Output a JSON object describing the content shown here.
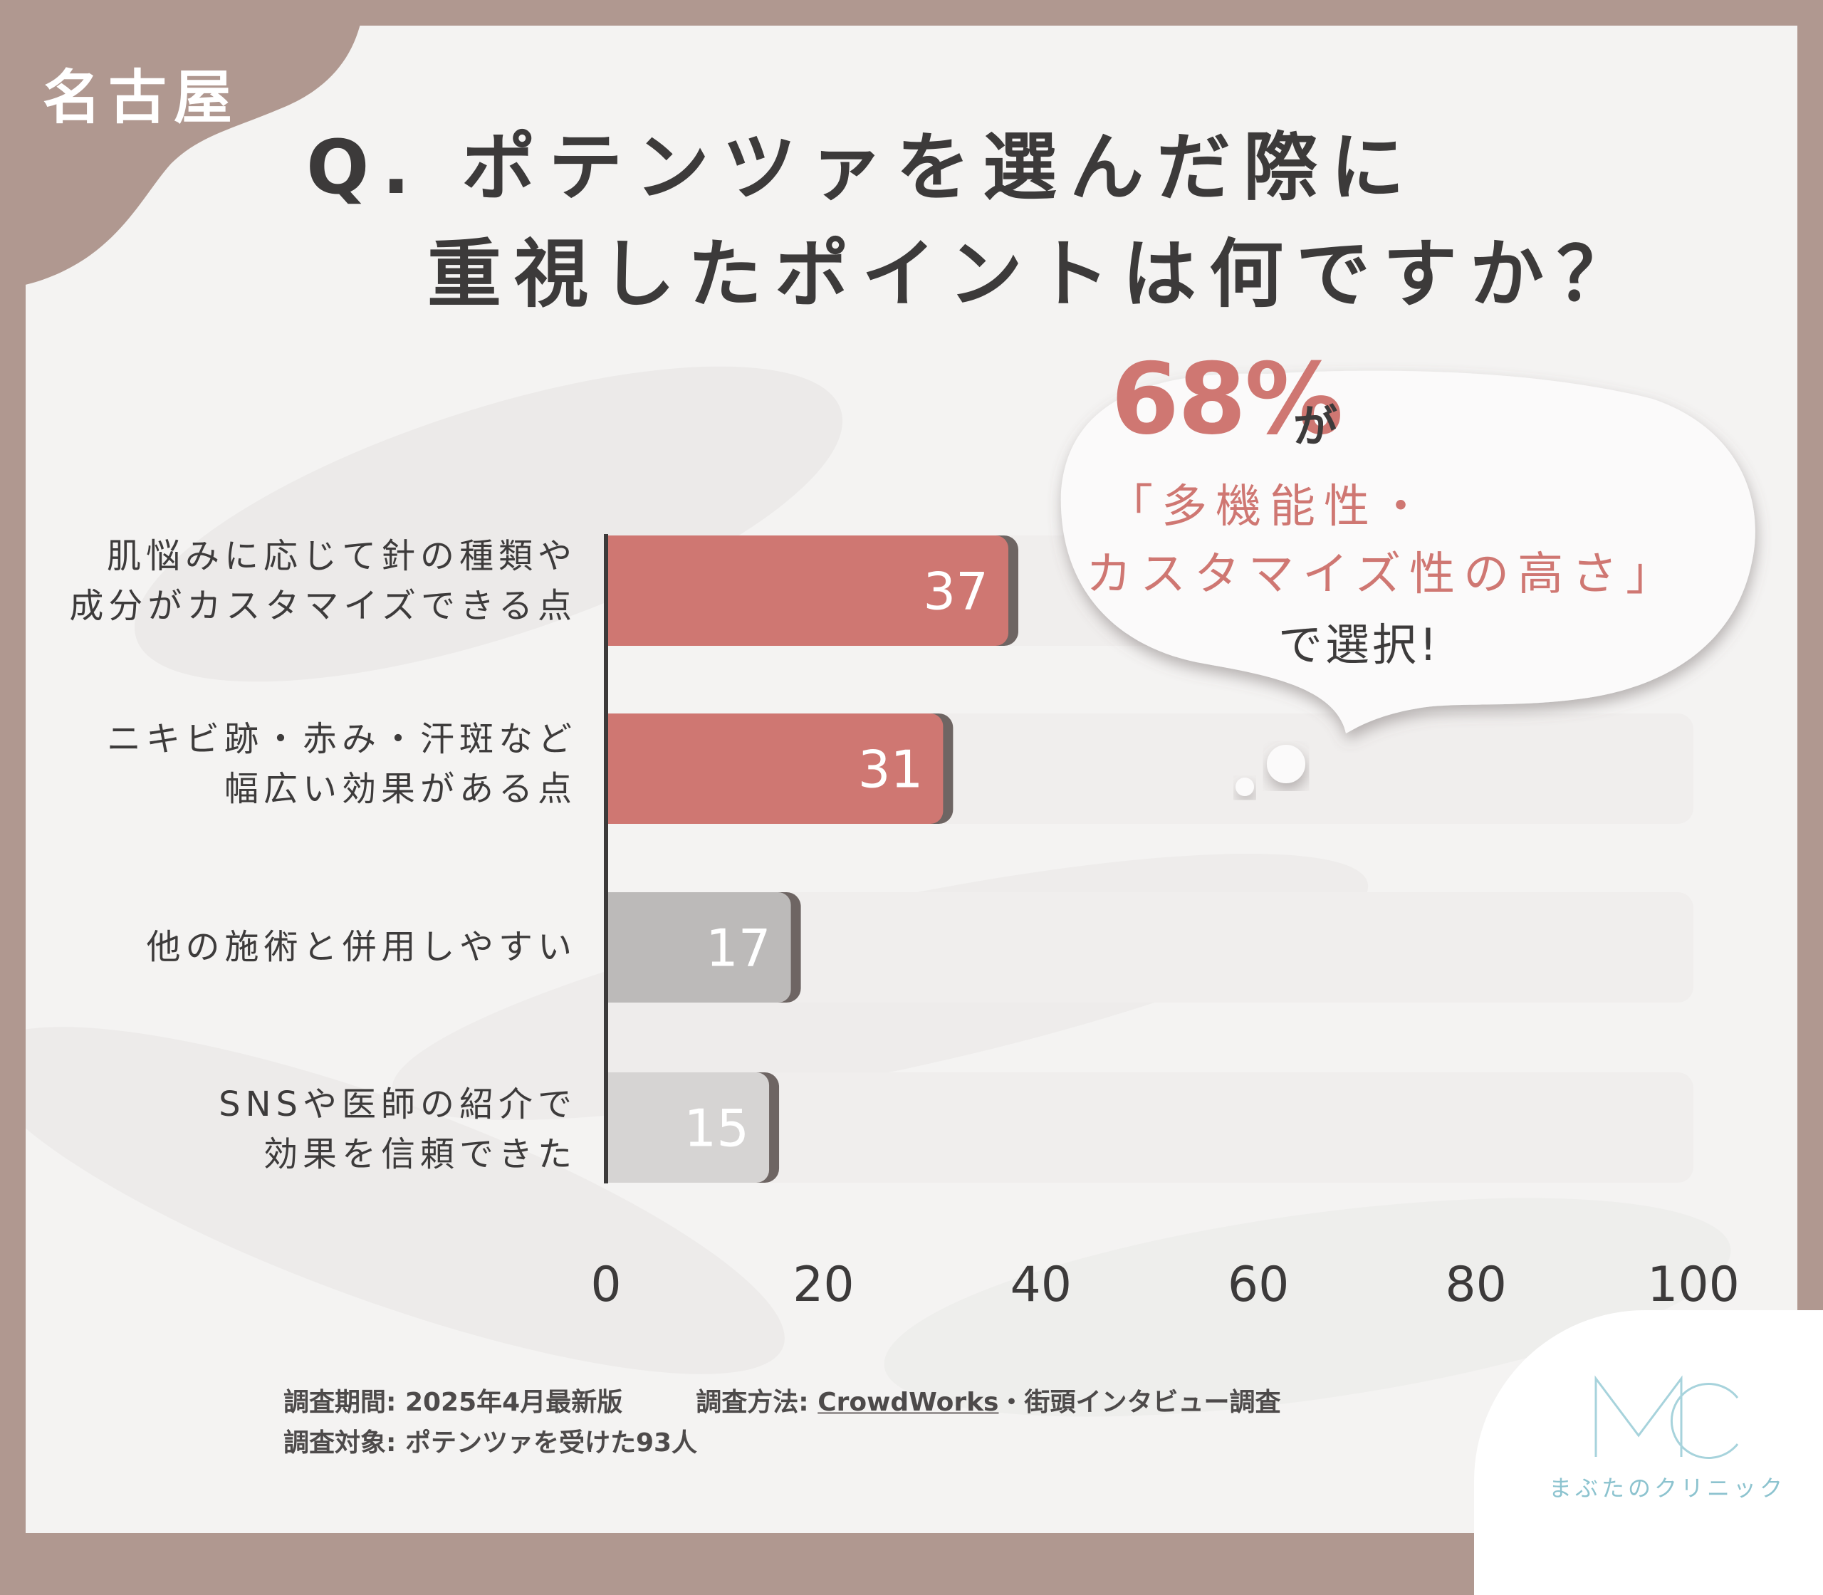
{
  "region_tag": "名古屋",
  "title": {
    "line1": "Q. ポテンツァを選んだ際に",
    "line2": "重視したポイントは何ですか？"
  },
  "highlight": {
    "percent": "68%",
    "suffix": "が",
    "quote_line1": "「多機能性・",
    "quote_line2": "カスタマイズ性の高さ」",
    "ending": "で選択!"
  },
  "colors": {
    "accent": "#cf7772",
    "bar_gray": "#bcbab9",
    "bar_light_gray": "#d6d4d3",
    "track": "#f0eeed",
    "frame": "#b09890",
    "text": "#3c3a3a"
  },
  "chart_data": {
    "type": "bar",
    "orientation": "horizontal",
    "categories": [
      "肌悩みに応じて針の種類や\n成分がカスタマイズできる点",
      "ニキビ跡・赤み・汗斑など\n幅広い効果がある点",
      "他の施術と併用しやすい",
      "SNSや医師の紹介で\n効果を信頼できた"
    ],
    "values": [
      37,
      31,
      17,
      15
    ],
    "data_labels": [
      "37",
      "31",
      "17",
      "15"
    ],
    "xlim": [
      0,
      100
    ],
    "x_ticks": [
      "0",
      "20",
      "40",
      "60",
      "80",
      "100"
    ],
    "bar_colors": [
      "#cf7772",
      "#cf7772",
      "#bcbab9",
      "#d6d4d3"
    ],
    "grid": false
  },
  "footer": {
    "period_label": "調査期間:",
    "period_value": "2025年4月最新版",
    "method_label": "調査方法:",
    "method_value": "CrowdWorks",
    "method_rest": "・街頭インタビュー調査",
    "target_label": "調査対象:",
    "target_value": "ポテンツァを受けた93人"
  },
  "logo": {
    "mark": "MC",
    "name": "まぶたのクリニック",
    "color": "#8cc3cf"
  }
}
